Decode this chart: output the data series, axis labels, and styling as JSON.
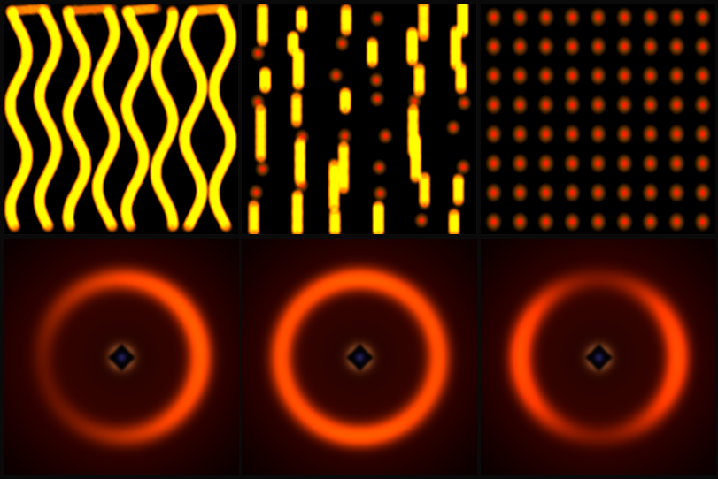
{
  "fig_width": 8.12,
  "fig_height": 5.42,
  "bg_color": "#0a0a0a",
  "panel_bg": "#0d0d0d",
  "stripe_color_outer": "#FFB300",
  "stripe_color_inner": "#CC0000",
  "dot_color_outer": "#FFB300",
  "dot_color_inner": "#CC0000",
  "ring_color_bright": "#FF6600",
  "ring_color_dim": "#880000",
  "n_cols": 3,
  "n_rows": 2
}
